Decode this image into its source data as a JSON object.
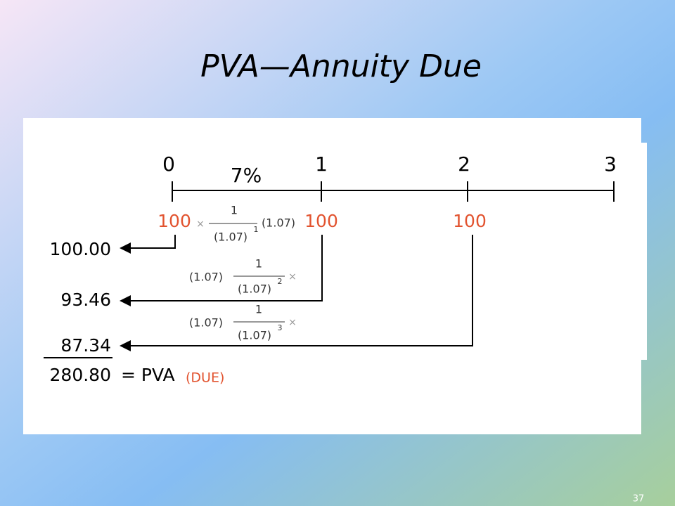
{
  "title": "PVA—Annuity Due",
  "timeline": {
    "periods": [
      "0",
      "1",
      "2",
      "3"
    ],
    "rate": "7%",
    "payments": [
      "100",
      "100",
      "100"
    ]
  },
  "discount_factors": [
    {
      "times": "×",
      "numerator": "1",
      "denominator": "(1.07)",
      "exponent": "1",
      "multiplier": "(1.07)"
    },
    {
      "multiplier": "(1.07)",
      "numerator": "1",
      "denominator": "(1.07)",
      "exponent": "2",
      "times": "×"
    },
    {
      "multiplier": "(1.07)",
      "numerator": "1",
      "denominator": "(1.07)",
      "exponent": "3",
      "times": "×"
    }
  ],
  "results": [
    "100.00",
    "93.46",
    "87.34"
  ],
  "total": {
    "value": "280.80",
    "equals": "= PVA",
    "note": "(DUE)"
  },
  "slide_number": "37"
}
